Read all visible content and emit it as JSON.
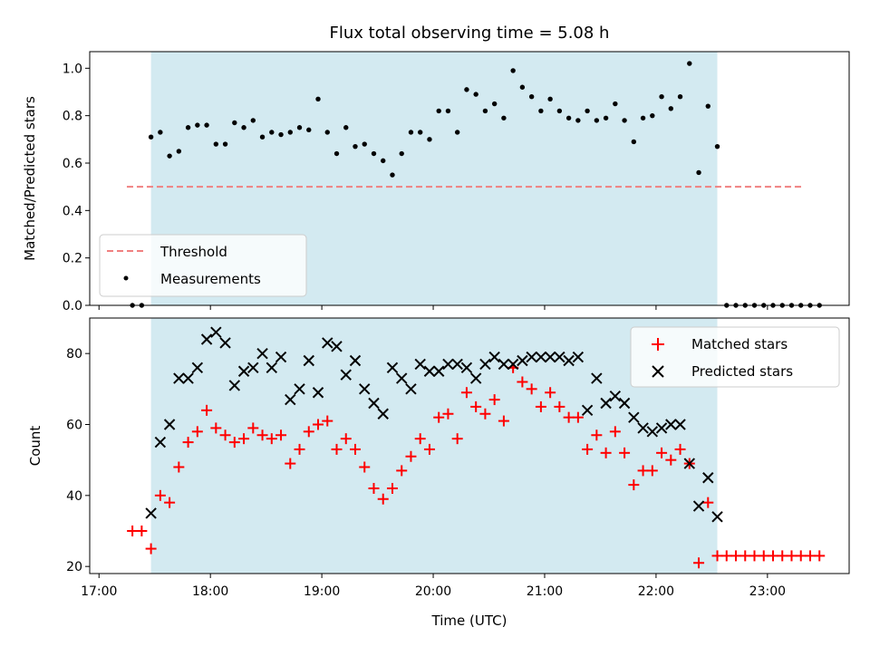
{
  "chart_data": [
    {
      "type": "scatter",
      "title": "Flux total observing time = 5.08 h",
      "ylabel": "Matched/Predicted stars",
      "xlim": [
        "16:55",
        "23:44"
      ],
      "ylim": [
        0,
        1.07
      ],
      "yticks": [
        "0.0",
        "0.2",
        "0.4",
        "0.6",
        "0.8",
        "1.0"
      ],
      "highlight_span": {
        "start": "17:28",
        "end": "22:33",
        "color": "#d3eaf1"
      },
      "threshold": {
        "name": "Threshold",
        "value": 0.5,
        "x_start": "17:15",
        "x_end": "23:20",
        "color": "#f08080",
        "style": "dashed"
      },
      "legend": {
        "position": "lower-left",
        "entries": [
          "Threshold",
          "Measurements"
        ]
      },
      "series": [
        {
          "name": "Measurements",
          "marker": "dot",
          "color": "#000000",
          "x": [
            "17:18",
            "17:23",
            "17:28",
            "17:33",
            "17:38",
            "17:43",
            "17:48",
            "17:53",
            "17:58",
            "18:03",
            "18:08",
            "18:13",
            "18:18",
            "18:23",
            "18:28",
            "18:33",
            "18:38",
            "18:43",
            "18:48",
            "18:53",
            "18:58",
            "19:03",
            "19:08",
            "19:13",
            "19:18",
            "19:23",
            "19:28",
            "19:33",
            "19:38",
            "19:43",
            "19:48",
            "19:53",
            "19:58",
            "20:03",
            "20:08",
            "20:13",
            "20:18",
            "20:23",
            "20:28",
            "20:33",
            "20:38",
            "20:43",
            "20:48",
            "20:53",
            "20:58",
            "21:03",
            "21:08",
            "21:13",
            "21:18",
            "21:23",
            "21:28",
            "21:33",
            "21:38",
            "21:43",
            "21:48",
            "21:53",
            "21:58",
            "22:03",
            "22:08",
            "22:13",
            "22:18",
            "22:23",
            "22:28",
            "22:33",
            "22:38",
            "22:43",
            "22:48",
            "22:53",
            "22:58",
            "23:03",
            "23:08",
            "23:13",
            "23:18",
            "23:23",
            "23:28"
          ],
          "y": [
            0.0,
            0.0,
            0.71,
            0.73,
            0.63,
            0.65,
            0.75,
            0.76,
            0.76,
            0.68,
            0.68,
            0.77,
            0.75,
            0.78,
            0.71,
            0.73,
            0.72,
            0.73,
            0.75,
            0.74,
            0.87,
            0.73,
            0.64,
            0.75,
            0.67,
            0.68,
            0.64,
            0.61,
            0.55,
            0.64,
            0.73,
            0.73,
            0.7,
            0.82,
            0.82,
            0.73,
            0.91,
            0.89,
            0.82,
            0.85,
            0.79,
            0.99,
            0.92,
            0.88,
            0.82,
            0.87,
            0.82,
            0.79,
            0.78,
            0.82,
            0.78,
            0.79,
            0.85,
            0.78,
            0.69,
            0.79,
            0.8,
            0.88,
            0.83,
            0.88,
            1.02,
            0.56,
            0.84,
            0.67,
            0.0,
            0.0,
            0.0,
            0.0,
            0.0,
            0.0,
            0.0,
            0.0,
            0.0,
            0.0,
            0.0
          ]
        }
      ]
    },
    {
      "type": "scatter",
      "xlabel": "Time (UTC)",
      "ylabel": "Count",
      "xlim": [
        "16:55",
        "23:44"
      ],
      "ylim": [
        18,
        90
      ],
      "yticks": [
        "20",
        "40",
        "60",
        "80"
      ],
      "xticks": [
        "17:00",
        "18:00",
        "19:00",
        "20:00",
        "21:00",
        "22:00",
        "23:00"
      ],
      "highlight_span": {
        "start": "17:28",
        "end": "22:33",
        "color": "#d3eaf1"
      },
      "legend": {
        "position": "upper-right",
        "entries": [
          "Matched stars",
          "Predicted stars"
        ]
      },
      "series": [
        {
          "name": "Matched stars",
          "marker": "plus",
          "color": "#ff0000",
          "x": [
            "17:18",
            "17:23",
            "17:28",
            "17:33",
            "17:38",
            "17:43",
            "17:48",
            "17:53",
            "17:58",
            "18:03",
            "18:08",
            "18:13",
            "18:18",
            "18:23",
            "18:28",
            "18:33",
            "18:38",
            "18:43",
            "18:48",
            "18:53",
            "18:58",
            "19:03",
            "19:08",
            "19:13",
            "19:18",
            "19:23",
            "19:28",
            "19:33",
            "19:38",
            "19:43",
            "19:48",
            "19:53",
            "19:58",
            "20:03",
            "20:08",
            "20:13",
            "20:18",
            "20:23",
            "20:28",
            "20:33",
            "20:38",
            "20:43",
            "20:48",
            "20:53",
            "20:58",
            "21:03",
            "21:08",
            "21:13",
            "21:18",
            "21:23",
            "21:28",
            "21:33",
            "21:38",
            "21:43",
            "21:48",
            "21:53",
            "21:58",
            "22:03",
            "22:08",
            "22:13",
            "22:18",
            "22:23",
            "22:28",
            "22:33",
            "22:38",
            "22:43",
            "22:48",
            "22:53",
            "22:58",
            "23:03",
            "23:08",
            "23:13",
            "23:18",
            "23:23",
            "23:28"
          ],
          "y": [
            30,
            30,
            25,
            40,
            38,
            48,
            55,
            58,
            64,
            59,
            57,
            55,
            56,
            59,
            57,
            56,
            57,
            49,
            53,
            58,
            60,
            61,
            53,
            56,
            53,
            48,
            42,
            39,
            42,
            47,
            51,
            56,
            53,
            62,
            63,
            56,
            69,
            65,
            63,
            67,
            61,
            76,
            72,
            70,
            65,
            69,
            65,
            62,
            62,
            53,
            57,
            52,
            58,
            52,
            43,
            47,
            47,
            52,
            50,
            53,
            49,
            21,
            38,
            23,
            23,
            23,
            23,
            23,
            23,
            23,
            23,
            23,
            23,
            23,
            23
          ]
        },
        {
          "name": "Predicted stars",
          "marker": "x",
          "color": "#000000",
          "x": [
            "17:28",
            "17:33",
            "17:38",
            "17:43",
            "17:48",
            "17:53",
            "17:58",
            "18:03",
            "18:08",
            "18:13",
            "18:18",
            "18:23",
            "18:28",
            "18:33",
            "18:38",
            "18:43",
            "18:48",
            "18:53",
            "18:58",
            "19:03",
            "19:08",
            "19:13",
            "19:18",
            "19:23",
            "19:28",
            "19:33",
            "19:38",
            "19:43",
            "19:48",
            "19:53",
            "19:58",
            "20:03",
            "20:08",
            "20:13",
            "20:18",
            "20:23",
            "20:28",
            "20:33",
            "20:38",
            "20:43",
            "20:48",
            "20:53",
            "20:58",
            "21:03",
            "21:08",
            "21:13",
            "21:18",
            "21:23",
            "21:28",
            "21:33",
            "21:38",
            "21:43",
            "21:48",
            "21:53",
            "21:58",
            "22:03",
            "22:08",
            "22:13",
            "22:18",
            "22:23",
            "22:28",
            "22:33"
          ],
          "y": [
            35,
            55,
            60,
            73,
            73,
            76,
            84,
            86,
            83,
            71,
            75,
            76,
            80,
            76,
            79,
            67,
            70,
            78,
            69,
            83,
            82,
            74,
            78,
            70,
            66,
            63,
            76,
            73,
            70,
            77,
            75,
            75,
            77,
            77,
            76,
            73,
            77,
            79,
            77,
            77,
            78,
            79,
            79,
            79,
            79,
            78,
            79,
            64,
            73,
            66,
            68,
            66,
            62,
            59,
            58,
            59,
            60,
            60,
            49,
            37,
            45,
            34
          ]
        }
      ]
    }
  ]
}
